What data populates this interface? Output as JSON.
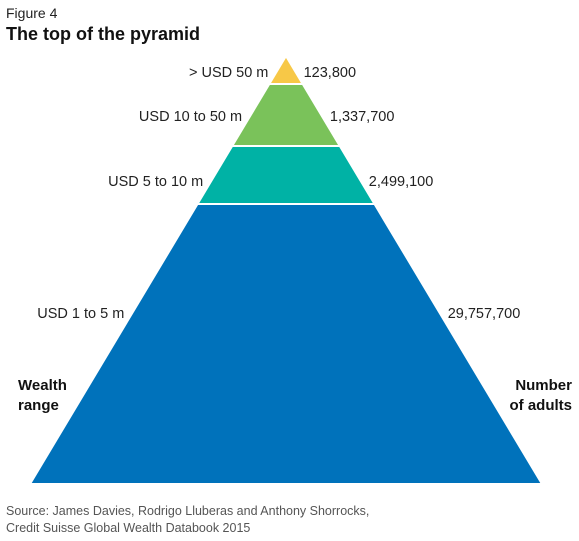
{
  "figure_label": "Figure 4",
  "title": "The top of the pyramid",
  "left_axis_title": [
    "Wealth",
    "range"
  ],
  "right_axis_title": [
    "Number",
    "of adults"
  ],
  "source_lines": [
    "Source: James Davies, Rodrigo Lluberas and Anthony Shorrocks,",
    "Credit Suisse Global Wealth Databook 2015"
  ],
  "chart_data": {
    "type": "pyramid",
    "title": "The top of the pyramid",
    "xlabel": "Wealth range",
    "ylabel": "Number of adults",
    "tiers": [
      {
        "range": "> USD 50 m",
        "adults": "123,800",
        "value": 123800,
        "color": "#F7C847"
      },
      {
        "range": "USD 10 to 50 m",
        "adults": "1,337,700",
        "value": 1337700,
        "color": "#7AC25A"
      },
      {
        "range": "USD 5 to 10 m",
        "adults": "2,499,100",
        "value": 2499100,
        "color": "#00B2A5"
      },
      {
        "range": "USD 1 to 5 m",
        "adults": "29,757,700",
        "value": 29757700,
        "color": "#0072BB"
      }
    ]
  }
}
